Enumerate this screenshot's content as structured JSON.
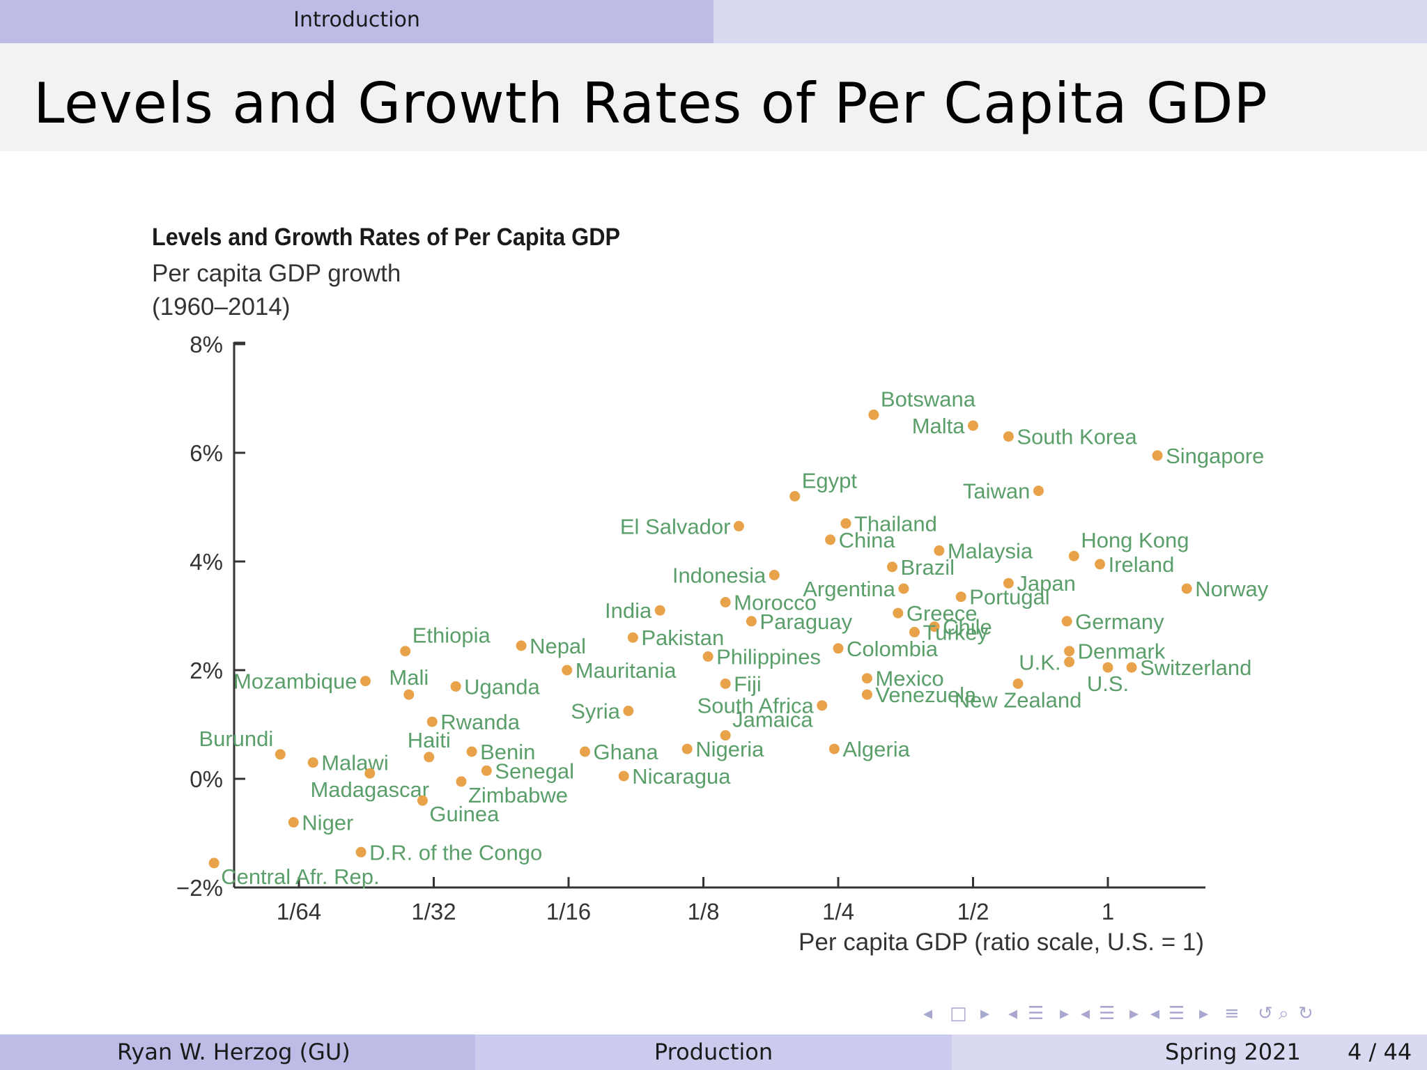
{
  "header": {
    "section": "Introduction",
    "slide_title": "Levels and Growth Rates of Per Capita GDP"
  },
  "footer": {
    "author": "Ryan W. Herzog  (GU)",
    "topic": "Production",
    "term": "Spring 2021",
    "page": "4 / 44"
  },
  "colors": {
    "marker": "#e8a24a",
    "label": "#5a9e6a",
    "axis": "#333333"
  },
  "nav_icons": [
    "nav-prev-icon",
    "frame-icon",
    "nav-next-icon",
    "nav-prev-icon",
    "subsection-icon",
    "nav-next-icon",
    "nav-prev-icon",
    "section-icon",
    "nav-next-icon",
    "nav-prev-icon",
    "toc-icon",
    "nav-next-icon",
    "outline-icon",
    "undo-icon",
    "search-icon",
    "redo-icon"
  ],
  "chart_data": {
    "type": "scatter",
    "title": "Levels and Growth Rates of Per Capita GDP",
    "ylabel_lines": [
      "Per capita GDP growth",
      "(1960–2014)"
    ],
    "xlabel": "Per capita GDP (ratio scale, U.S. = 1)",
    "x_scale": "log2",
    "xlim": [
      0.01,
      1.6
    ],
    "ylim": [
      -2,
      8
    ],
    "x_ticks": [
      {
        "value": 0.015625,
        "label": "1/64"
      },
      {
        "value": 0.03125,
        "label": "1/32"
      },
      {
        "value": 0.0625,
        "label": "1/16"
      },
      {
        "value": 0.125,
        "label": "1/8"
      },
      {
        "value": 0.25,
        "label": "1/4"
      },
      {
        "value": 0.5,
        "label": "1/2"
      },
      {
        "value": 1,
        "label": "1"
      }
    ],
    "y_ticks": [
      {
        "value": 8,
        "label": "8%"
      },
      {
        "value": 6,
        "label": "6%"
      },
      {
        "value": 4,
        "label": "4%"
      },
      {
        "value": 2,
        "label": "2%"
      },
      {
        "value": 0,
        "label": "0%"
      },
      {
        "value": -2,
        "label": "−2%"
      }
    ],
    "grid": false,
    "points": [
      {
        "label": "Botswana",
        "x": 0.3,
        "y": 6.7,
        "pos": "ne"
      },
      {
        "label": "Malta",
        "x": 0.5,
        "y": 6.5,
        "pos": "w"
      },
      {
        "label": "South Korea",
        "x": 0.6,
        "y": 6.3,
        "pos": "e"
      },
      {
        "label": "Singapore",
        "x": 1.29,
        "y": 5.95,
        "pos": "e"
      },
      {
        "label": "Egypt",
        "x": 0.2,
        "y": 5.2,
        "pos": "ne"
      },
      {
        "label": "Taiwan",
        "x": 0.7,
        "y": 5.3,
        "pos": "w"
      },
      {
        "label": "El Salvador",
        "x": 0.15,
        "y": 4.65,
        "pos": "w"
      },
      {
        "label": "Thailand",
        "x": 0.26,
        "y": 4.7,
        "pos": "e"
      },
      {
        "label": "China",
        "x": 0.24,
        "y": 4.4,
        "pos": "e"
      },
      {
        "label": "Malaysia",
        "x": 0.42,
        "y": 4.2,
        "pos": "e"
      },
      {
        "label": "Brazil",
        "x": 0.33,
        "y": 3.9,
        "pos": "e"
      },
      {
        "label": "Hong Kong",
        "x": 0.84,
        "y": 4.1,
        "pos": "ne"
      },
      {
        "label": "Ireland",
        "x": 0.96,
        "y": 3.95,
        "pos": "e"
      },
      {
        "label": "Indonesia",
        "x": 0.18,
        "y": 3.75,
        "pos": "w"
      },
      {
        "label": "Argentina",
        "x": 0.35,
        "y": 3.5,
        "pos": "w"
      },
      {
        "label": "Japan",
        "x": 0.6,
        "y": 3.6,
        "pos": "e"
      },
      {
        "label": "Norway",
        "x": 1.5,
        "y": 3.5,
        "pos": "e"
      },
      {
        "label": "India",
        "x": 0.1,
        "y": 3.1,
        "pos": "w"
      },
      {
        "label": "Morocco",
        "x": 0.14,
        "y": 3.25,
        "pos": "e"
      },
      {
        "label": "Portugal",
        "x": 0.47,
        "y": 3.35,
        "pos": "e"
      },
      {
        "label": "Greece",
        "x": 0.34,
        "y": 3.05,
        "pos": "e"
      },
      {
        "label": "Germany",
        "x": 0.81,
        "y": 2.9,
        "pos": "e"
      },
      {
        "label": "Paraguay",
        "x": 0.16,
        "y": 2.9,
        "pos": "e"
      },
      {
        "label": "Chile",
        "x": 0.41,
        "y": 2.8,
        "pos": "e"
      },
      {
        "label": "Turkey",
        "x": 0.37,
        "y": 2.7,
        "pos": "e"
      },
      {
        "label": "Pakistan",
        "x": 0.087,
        "y": 2.6,
        "pos": "e"
      },
      {
        "label": "Ethiopia",
        "x": 0.027,
        "y": 2.35,
        "pos": "ne"
      },
      {
        "label": "Nepal",
        "x": 0.049,
        "y": 2.45,
        "pos": "e"
      },
      {
        "label": "Denmark",
        "x": 0.82,
        "y": 2.35,
        "pos": "e"
      },
      {
        "label": "Colombia",
        "x": 0.25,
        "y": 2.4,
        "pos": "e"
      },
      {
        "label": "Philippines",
        "x": 0.128,
        "y": 2.25,
        "pos": "e"
      },
      {
        "label": "U.K.",
        "x": 0.82,
        "y": 2.15,
        "pos": "w"
      },
      {
        "label": "Switzerland",
        "x": 1.13,
        "y": 2.05,
        "pos": "e"
      },
      {
        "label": "U.S.",
        "x": 1,
        "y": 2.05,
        "pos": "s"
      },
      {
        "label": "Mauritania",
        "x": 0.062,
        "y": 2.0,
        "pos": "e"
      },
      {
        "label": "Mozambique",
        "x": 0.022,
        "y": 1.8,
        "pos": "w"
      },
      {
        "label": "Mali",
        "x": 0.0275,
        "y": 1.55,
        "pos": "n"
      },
      {
        "label": "Uganda",
        "x": 0.035,
        "y": 1.7,
        "pos": "e"
      },
      {
        "label": "Fiji",
        "x": 0.14,
        "y": 1.75,
        "pos": "e"
      },
      {
        "label": "Mexico",
        "x": 0.29,
        "y": 1.85,
        "pos": "e"
      },
      {
        "label": "New Zealand",
        "x": 0.63,
        "y": 1.75,
        "pos": "s"
      },
      {
        "label": "Venezuela",
        "x": 0.29,
        "y": 1.55,
        "pos": "e"
      },
      {
        "label": "South Africa",
        "x": 0.23,
        "y": 1.35,
        "pos": "w"
      },
      {
        "label": "Syria",
        "x": 0.085,
        "y": 1.25,
        "pos": "w"
      },
      {
        "label": "Rwanda",
        "x": 0.031,
        "y": 1.05,
        "pos": "e"
      },
      {
        "label": "Jamaica",
        "x": 0.14,
        "y": 0.8,
        "pos": "ne"
      },
      {
        "label": "Burundi",
        "x": 0.0142,
        "y": 0.45,
        "pos": "nw"
      },
      {
        "label": "Malawi",
        "x": 0.0168,
        "y": 0.3,
        "pos": "e"
      },
      {
        "label": "Haiti",
        "x": 0.0305,
        "y": 0.4,
        "pos": "n"
      },
      {
        "label": "Benin",
        "x": 0.038,
        "y": 0.5,
        "pos": "e"
      },
      {
        "label": "Ghana",
        "x": 0.068,
        "y": 0.5,
        "pos": "e"
      },
      {
        "label": "Nigeria",
        "x": 0.115,
        "y": 0.55,
        "pos": "e"
      },
      {
        "label": "Algeria",
        "x": 0.245,
        "y": 0.55,
        "pos": "e"
      },
      {
        "label": "Senegal",
        "x": 0.041,
        "y": 0.15,
        "pos": "e"
      },
      {
        "label": "Madagascar",
        "x": 0.0225,
        "y": 0.1,
        "pos": "s"
      },
      {
        "label": "Nicaragua",
        "x": 0.083,
        "y": 0.05,
        "pos": "e"
      },
      {
        "label": "Zimbabwe",
        "x": 0.036,
        "y": -0.05,
        "pos": "se"
      },
      {
        "label": "Guinea",
        "x": 0.0295,
        "y": -0.4,
        "pos": "se"
      },
      {
        "label": "Niger",
        "x": 0.0152,
        "y": -0.8,
        "pos": "e"
      },
      {
        "label": "D.R. of the Congo",
        "x": 0.0215,
        "y": -1.35,
        "pos": "e"
      },
      {
        "label": "Central Afr. Rep.",
        "x": 0.0101,
        "y": -1.55,
        "pos": "se"
      }
    ]
  }
}
